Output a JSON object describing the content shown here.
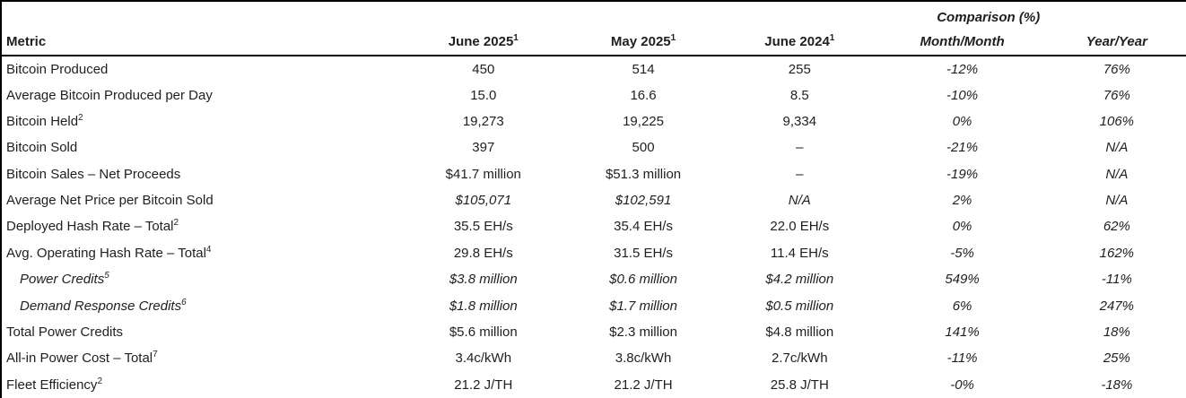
{
  "colors": {
    "text": "#1f1f1f",
    "border": "#000000",
    "background": "#ffffff"
  },
  "table": {
    "comparison_header": "Comparison (%)",
    "columns": [
      {
        "label": "Metric",
        "sup": ""
      },
      {
        "label": "June 2025",
        "sup": "1"
      },
      {
        "label": "May 2025",
        "sup": "1"
      },
      {
        "label": "June 2024",
        "sup": "1"
      },
      {
        "label": "Month/Month",
        "sup": ""
      },
      {
        "label": "Year/Year",
        "sup": ""
      }
    ],
    "rows": [
      {
        "metric": "Bitcoin Produced",
        "metric_sup": "",
        "indent": false,
        "metric_italic": false,
        "italic_values": false,
        "values": [
          "450",
          "514",
          "255",
          "-12%",
          "76%"
        ]
      },
      {
        "metric": "Average Bitcoin Produced per Day",
        "metric_sup": "",
        "indent": false,
        "metric_italic": false,
        "italic_values": false,
        "values": [
          "15.0",
          "16.6",
          "8.5",
          "-10%",
          "76%"
        ]
      },
      {
        "metric": "Bitcoin Held",
        "metric_sup": "2",
        "indent": false,
        "metric_italic": false,
        "italic_values": false,
        "values": [
          "19,273",
          "19,225",
          "9,334",
          "0%",
          "106%"
        ]
      },
      {
        "metric": "Bitcoin Sold",
        "metric_sup": "",
        "indent": false,
        "metric_italic": false,
        "italic_values": false,
        "values": [
          "397",
          "500",
          "–",
          "-21%",
          "N/A"
        ]
      },
      {
        "metric": "Bitcoin Sales – Net Proceeds",
        "metric_sup": "",
        "indent": false,
        "metric_italic": false,
        "italic_values": false,
        "values": [
          "$41.7 million",
          "$51.3 million",
          "–",
          "-19%",
          "N/A"
        ]
      },
      {
        "metric": "Average Net Price per Bitcoin Sold",
        "metric_sup": "",
        "indent": false,
        "metric_italic": false,
        "italic_values": true,
        "values": [
          "$105,071",
          "$102,591",
          "N/A",
          "2%",
          "N/A"
        ]
      },
      {
        "metric": "Deployed Hash Rate – Total",
        "metric_sup": "2",
        "indent": false,
        "metric_italic": false,
        "italic_values": false,
        "values": [
          "35.5 EH/s",
          "35.4 EH/s",
          "22.0 EH/s",
          "0%",
          "62%"
        ]
      },
      {
        "metric": "Avg. Operating Hash Rate – Total",
        "metric_sup": "4",
        "indent": false,
        "metric_italic": false,
        "italic_values": false,
        "values": [
          "29.8 EH/s",
          "31.5 EH/s",
          "11.4 EH/s",
          "-5%",
          "162%"
        ]
      },
      {
        "metric": "Power Credits",
        "metric_sup": "5",
        "indent": true,
        "metric_italic": true,
        "italic_values": true,
        "values": [
          "$3.8 million",
          "$0.6 million",
          "$4.2 million",
          "549%",
          "-11%"
        ]
      },
      {
        "metric": "Demand Response Credits",
        "metric_sup": "6",
        "indent": true,
        "metric_italic": true,
        "italic_values": true,
        "values": [
          "$1.8 million",
          "$1.7 million",
          "$0.5 million",
          "6%",
          "247%"
        ]
      },
      {
        "metric": "Total Power Credits",
        "metric_sup": "",
        "indent": false,
        "metric_italic": false,
        "italic_values": false,
        "values": [
          "$5.6 million",
          "$2.3 million",
          "$4.8 million",
          "141%",
          "18%"
        ]
      },
      {
        "metric": "All-in Power Cost – Total",
        "metric_sup": "7",
        "indent": false,
        "metric_italic": false,
        "italic_values": false,
        "values": [
          "3.4c/kWh",
          "3.8c/kWh",
          "2.7c/kWh",
          "-11%",
          "25%"
        ]
      },
      {
        "metric": "Fleet Efficiency",
        "metric_sup": "2",
        "indent": false,
        "metric_italic": false,
        "italic_values": false,
        "values": [
          "21.2 J/TH",
          "21.2 J/TH",
          "25.8 J/TH",
          "-0%",
          "-18%"
        ]
      }
    ]
  }
}
